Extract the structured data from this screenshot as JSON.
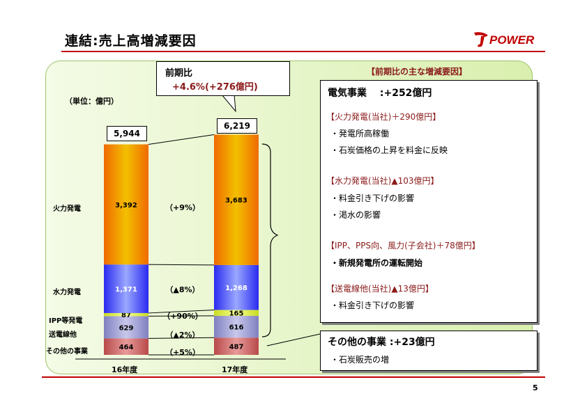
{
  "title": "連結:売上高増減要因",
  "logo_text": "POWER",
  "page_number": "5",
  "unit_label": "（単位：億円）",
  "callout": {
    "line1": "前期比",
    "line2": "+4.6%(+276億円)"
  },
  "factors_header": "【前期比の主な増減要因】",
  "electric": {
    "heading": "電気事業　 :+252億円",
    "sections": [
      {
        "title": "【火力発電(当社)＋290億円】",
        "items": [
          "・発電所高稼働",
          "・石炭価格の上昇を料金に反映"
        ]
      },
      {
        "title": "【水力発電(当社)▲103億円】",
        "items": [
          "・料金引き下げの影響",
          "・渇水の影響"
        ]
      },
      {
        "title": "【IPP、PPS向、風力(子会社)＋78億円】",
        "items": [
          "・新規発電所の運転開始"
        ]
      },
      {
        "title": "【送電線他(当社)▲13億円】",
        "items": [
          "・料金引き下げの影響"
        ]
      }
    ]
  },
  "other": {
    "heading": "その他の事業 :+23億円",
    "items": [
      "・石炭販売の増"
    ]
  },
  "colors": {
    "accent_red": "#c00000",
    "thermal": "#f08a10",
    "hydro": "#3030f0",
    "ipp": "#d8e840",
    "transmission": "#9a9ad0",
    "other": "#c06060"
  },
  "chart_data": {
    "type": "bar",
    "stacked": true,
    "categories": [
      "16年度",
      "17年度"
    ],
    "totals": [
      "5,944",
      "6,219"
    ],
    "series": [
      {
        "name": "その他の事業",
        "values": [
          464,
          487
        ],
        "labels": [
          "464",
          "487"
        ],
        "change": "（+5%）"
      },
      {
        "name": "送電線他",
        "values": [
          629,
          616
        ],
        "labels": [
          "629",
          "616"
        ],
        "change": "（▲2%）"
      },
      {
        "name": "IPP等発電",
        "values": [
          87,
          165
        ],
        "labels": [
          "87",
          "165"
        ],
        "change": "（+90%）"
      },
      {
        "name": "水力発電",
        "values": [
          1371,
          1268
        ],
        "labels": [
          "1,371",
          "1,268"
        ],
        "change": "（▲8%）"
      },
      {
        "name": "火力発電",
        "values": [
          3392,
          3683
        ],
        "labels": [
          "3,392",
          "3,683"
        ],
        "change": "（+9%）"
      }
    ]
  }
}
